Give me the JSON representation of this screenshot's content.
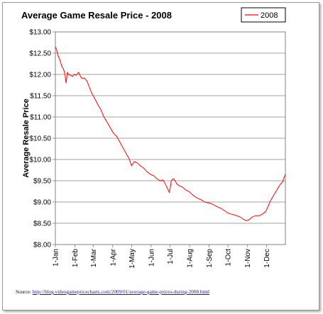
{
  "chart_data": {
    "type": "line",
    "title": "Average Game Resale Price - 2008",
    "xlabel": "",
    "ylabel": "Average Resale Price",
    "x_tick_labels": [
      "1-Jan",
      "1-Feb",
      "1-Mar",
      "1-Apr",
      "1-May",
      "1-Jun",
      "1-Jul",
      "1-Aug",
      "1-Sep",
      "1-Oct",
      "1-Nov",
      "1-Dec"
    ],
    "y_tick_labels": [
      "$8.00",
      "$8.50",
      "$9.00",
      "$9.50",
      "$10.00",
      "$10.50",
      "$11.00",
      "$11.50",
      "$12.00",
      "$12.50",
      "$13.00"
    ],
    "ylim": [
      8.0,
      13.0
    ],
    "xlim": [
      "2008-01-01",
      "2008-12-31"
    ],
    "grid": "horizontal",
    "legend_position": "top-right",
    "series": [
      {
        "name": "2008",
        "color": "#ff0000",
        "x": [
          "2008-01-01",
          "2008-01-03",
          "2008-01-05",
          "2008-01-08",
          "2008-01-11",
          "2008-01-14",
          "2008-01-16",
          "2008-01-18",
          "2008-01-20",
          "2008-01-22",
          "2008-01-25",
          "2008-01-28",
          "2008-01-31",
          "2008-02-03",
          "2008-02-07",
          "2008-02-10",
          "2008-02-13",
          "2008-02-16",
          "2008-02-20",
          "2008-02-24",
          "2008-02-28",
          "2008-03-03",
          "2008-03-08",
          "2008-03-13",
          "2008-03-18",
          "2008-03-23",
          "2008-03-28",
          "2008-04-02",
          "2008-04-07",
          "2008-04-12",
          "2008-04-17",
          "2008-04-22",
          "2008-04-27",
          "2008-05-01",
          "2008-05-05",
          "2008-05-10",
          "2008-05-15",
          "2008-05-20",
          "2008-05-25",
          "2008-05-31",
          "2008-06-05",
          "2008-06-10",
          "2008-06-15",
          "2008-06-20",
          "2008-06-25",
          "2008-06-30",
          "2008-07-03",
          "2008-07-06",
          "2008-07-09",
          "2008-07-12",
          "2008-07-16",
          "2008-07-21",
          "2008-07-26",
          "2008-07-31",
          "2008-08-05",
          "2008-08-10",
          "2008-08-15",
          "2008-08-20",
          "2008-08-25",
          "2008-08-31",
          "2008-09-05",
          "2008-09-10",
          "2008-09-15",
          "2008-09-20",
          "2008-09-25",
          "2008-09-30",
          "2008-10-05",
          "2008-10-10",
          "2008-10-15",
          "2008-10-20",
          "2008-10-25",
          "2008-10-30",
          "2008-11-03",
          "2008-11-06",
          "2008-11-10",
          "2008-11-15",
          "2008-11-20",
          "2008-11-25",
          "2008-11-30",
          "2008-12-03",
          "2008-12-07",
          "2008-12-11",
          "2008-12-15",
          "2008-12-19",
          "2008-12-23",
          "2008-12-27",
          "2008-12-29",
          "2008-12-31"
        ],
        "values": [
          12.65,
          12.58,
          12.45,
          12.35,
          12.2,
          12.12,
          12.02,
          11.8,
          12.05,
          12.0,
          11.98,
          11.95,
          12.0,
          11.98,
          12.05,
          11.95,
          11.9,
          11.92,
          11.85,
          11.7,
          11.55,
          11.45,
          11.3,
          11.18,
          11.0,
          10.88,
          10.75,
          10.62,
          10.55,
          10.42,
          10.28,
          10.15,
          10.02,
          9.85,
          9.95,
          9.92,
          9.85,
          9.8,
          9.72,
          9.65,
          9.62,
          9.55,
          9.5,
          9.52,
          9.38,
          9.22,
          9.5,
          9.55,
          9.5,
          9.42,
          9.38,
          9.35,
          9.28,
          9.25,
          9.18,
          9.12,
          9.08,
          9.05,
          9.0,
          8.98,
          8.96,
          8.92,
          8.88,
          8.85,
          8.8,
          8.75,
          8.72,
          8.7,
          8.68,
          8.65,
          8.6,
          8.56,
          8.58,
          8.62,
          8.66,
          8.68,
          8.68,
          8.72,
          8.78,
          8.88,
          9.02,
          9.12,
          9.22,
          9.32,
          9.42,
          9.48,
          9.58,
          9.65
        ]
      }
    ]
  },
  "source": {
    "label": "Source: ",
    "url": "http://blog.videogamepricecharts.com/2009/01/average-game-prices-during-2008.html"
  }
}
